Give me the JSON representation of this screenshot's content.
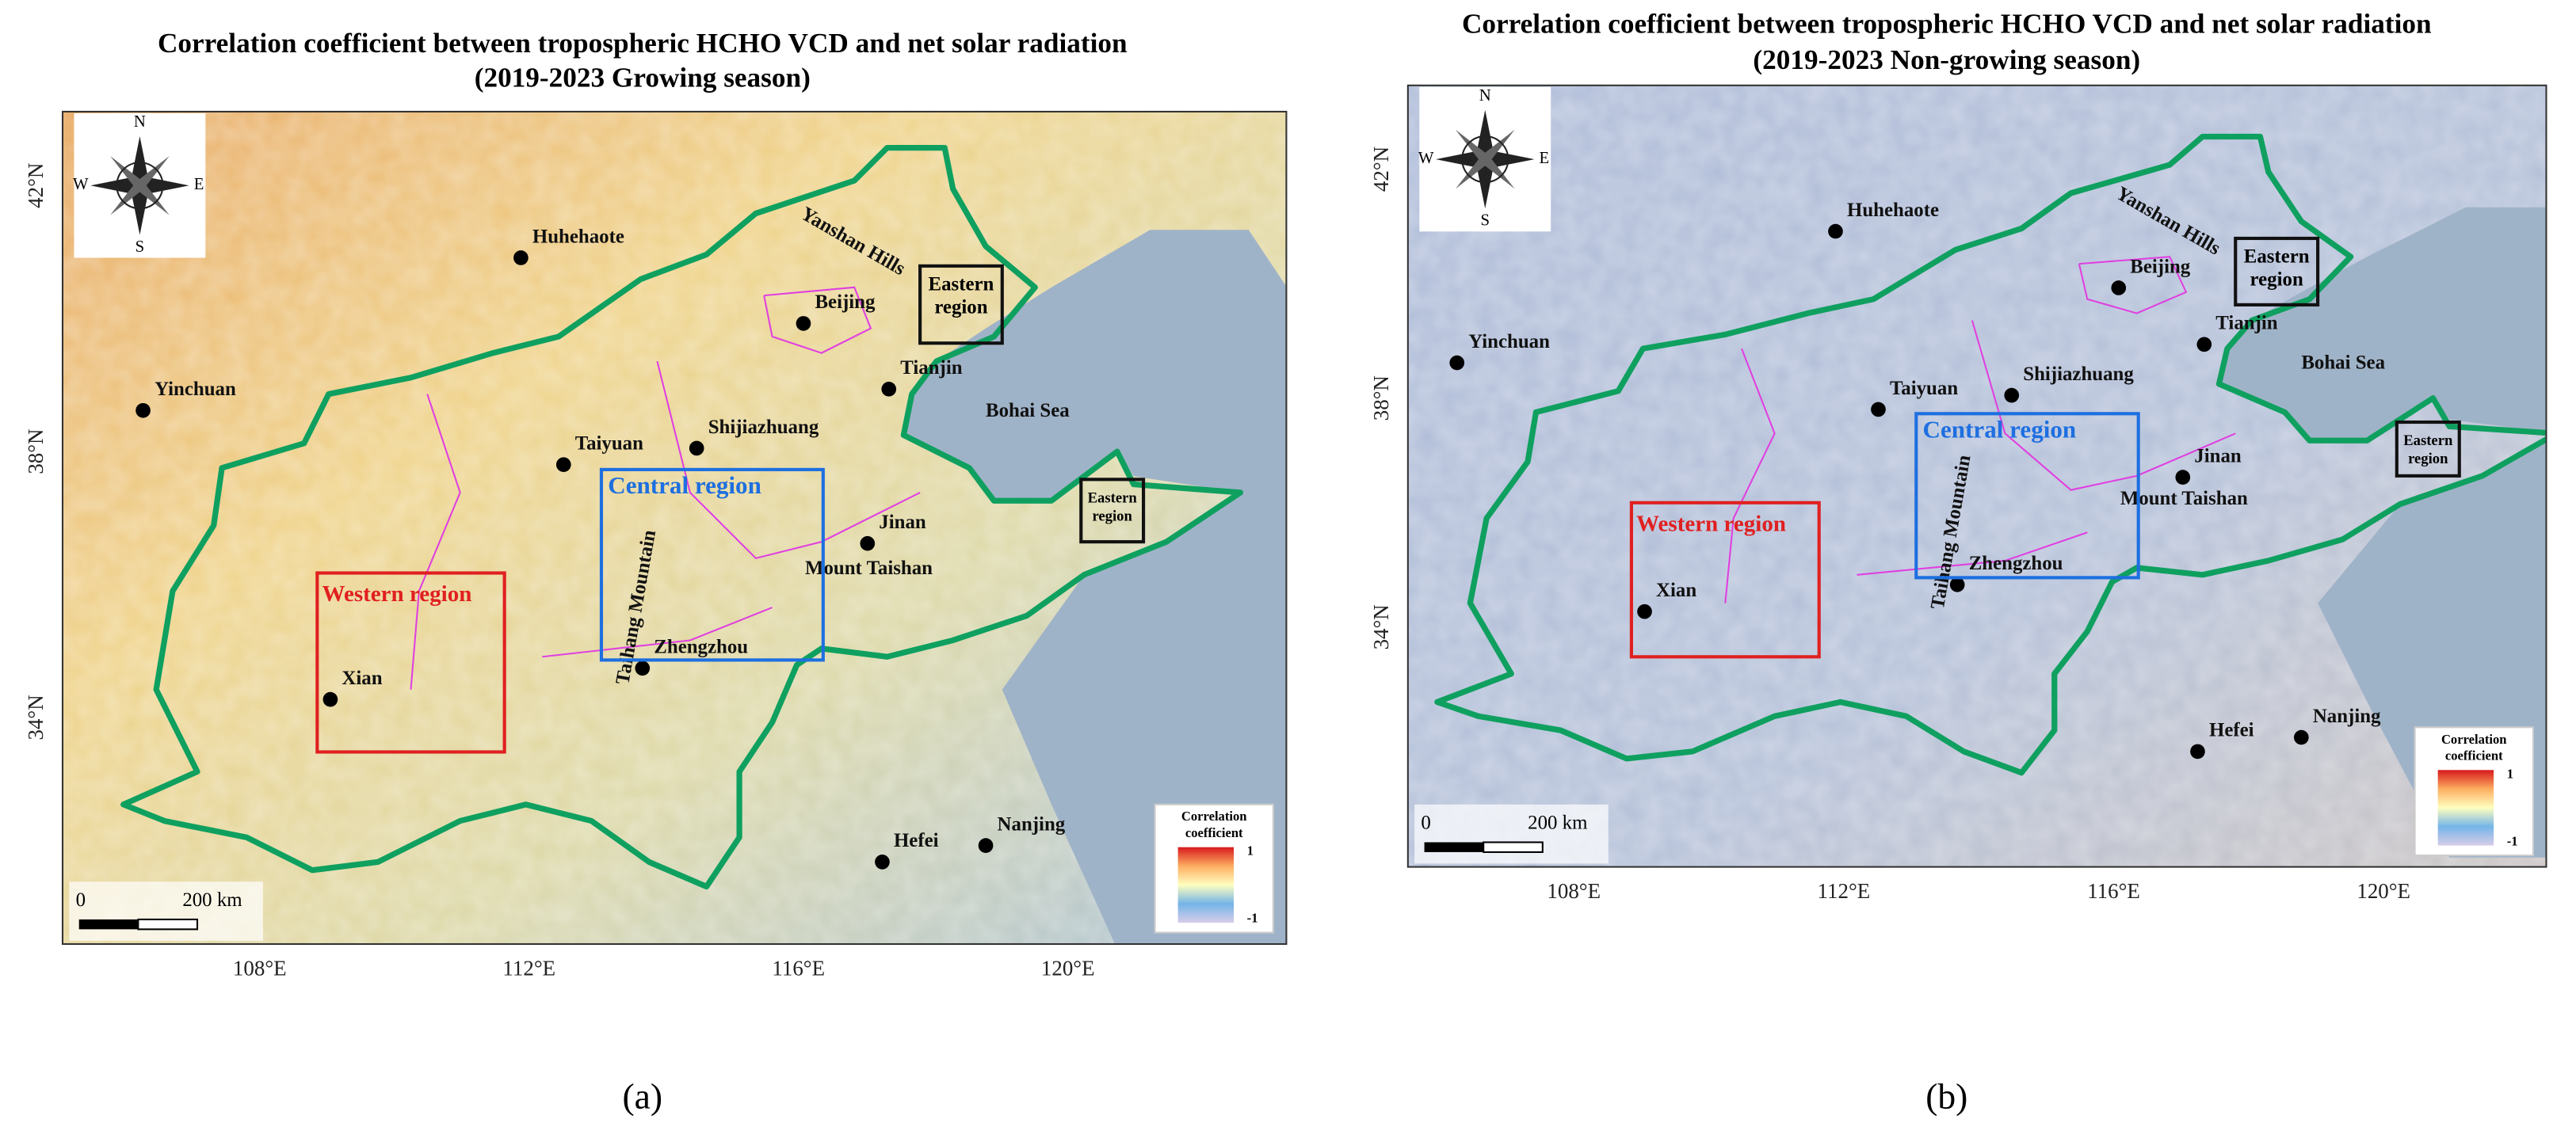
{
  "panels": [
    {
      "title": [
        "Correlation coefficient between tropospheric HCHO VCD and net solar radiation",
        "(2019-2023 Growing season)"
      ],
      "lat_labels": [
        "42°N",
        "38°N",
        "34°N"
      ],
      "lon_labels": [
        "108°E",
        "112°E",
        "116°E",
        "120°E"
      ],
      "cities": [
        "Huhehaote",
        "Beijing",
        "Tianjin",
        "Yinchuan",
        "Shijiazhuang",
        "Taiyuan",
        "Jinan",
        "Zhengzhou",
        "Xian",
        "Hefei",
        "Nanjing"
      ],
      "landmarks": {
        "mount": "Mount Taishan",
        "sea": "Bohai Sea",
        "hills": "Yanshan Hills",
        "mountain": "Taihang Mountain"
      },
      "regions": {
        "western": "Western region",
        "central": "Central region",
        "eastern": [
          "Eastern",
          "region"
        ],
        "eastern_small": [
          "Eastern",
          "region"
        ]
      },
      "compass": {
        "n": "N",
        "s": "S",
        "e": "E",
        "w": "W"
      },
      "legend": {
        "title": [
          "Correlation",
          "coefficient"
        ],
        "max": "1",
        "min": "-1"
      },
      "scale_bar": {
        "zero": "0",
        "length": "200 km"
      },
      "caption": "(a)"
    },
    {
      "title": [
        "Correlation coefficient between tropospheric HCHO VCD and net solar radiation",
        "(2019-2023 Non-growing season)"
      ],
      "lat_labels": [
        "42°N",
        "38°N",
        "34°N"
      ],
      "lon_labels": [
        "108°E",
        "112°E",
        "116°E",
        "120°E"
      ],
      "cities": [
        "Huhehaote",
        "Beijing",
        "Tianjin",
        "Yinchuan",
        "Shijiazhuang",
        "Taiyuan",
        "Jinan",
        "Zhengzhou",
        "Xian",
        "Hefei",
        "Nanjing"
      ],
      "landmarks": {
        "mount": "Mount Taishan",
        "sea": "Bohai Sea",
        "hills": "Yanshan Hills",
        "mountain": "Taihang Mountain"
      },
      "regions": {
        "western": "Western region",
        "central": "Central region",
        "eastern": [
          "Eastern",
          "region"
        ],
        "eastern_small": [
          "Eastern",
          "region"
        ]
      },
      "compass": {
        "n": "N",
        "s": "S",
        "e": "E",
        "w": "W"
      },
      "legend": {
        "title": [
          "Correlation",
          "coefficient"
        ],
        "max": "1",
        "min": "-1"
      },
      "scale_bar": {
        "zero": "0",
        "length": "200 km"
      },
      "caption": "(b)"
    }
  ]
}
